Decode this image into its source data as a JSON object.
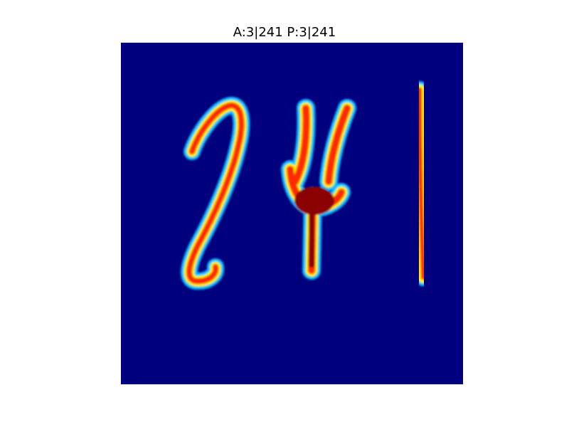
{
  "figure": {
    "title": "A:3|241 P:3|241"
  },
  "image": {
    "colormap": "jet",
    "background_color": "#00007f",
    "depicts": "handwritten-digits",
    "digit_colors": {
      "outer": "#00bfff",
      "mid": "#ffee00",
      "core": "#ff2a00",
      "peak": "#8b0000"
    }
  }
}
